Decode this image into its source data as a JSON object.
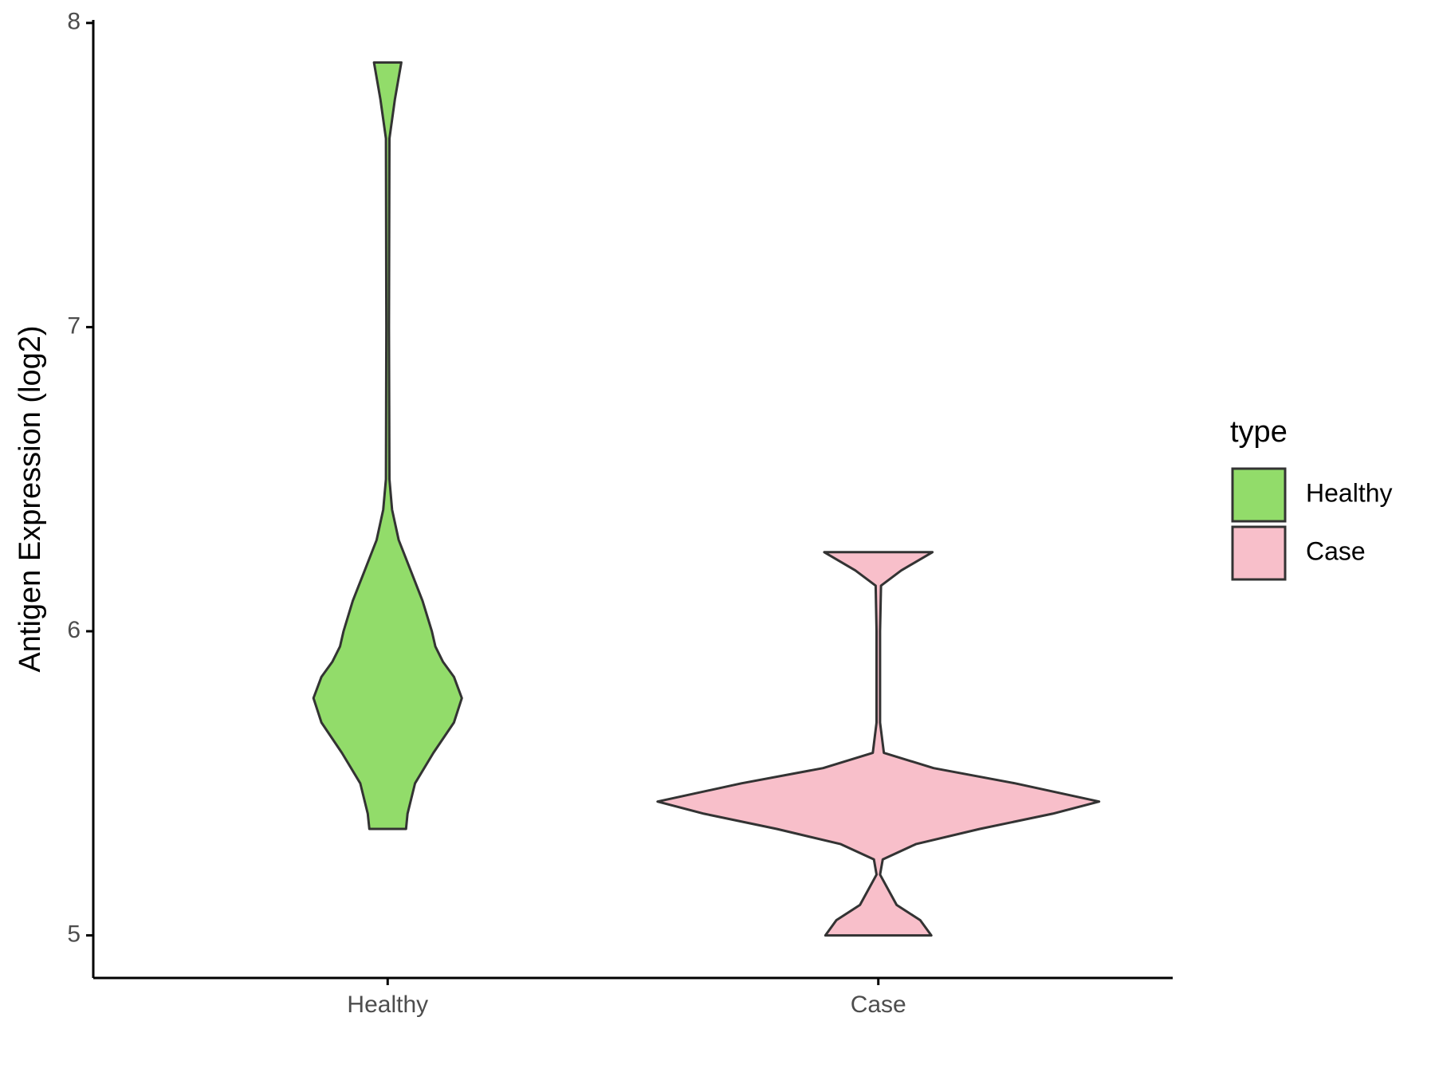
{
  "chart_data": {
    "type": "violin",
    "y_label": "Antigen Expression (log2)",
    "categories": [
      "Healthy",
      "Case"
    ],
    "legend_title": "type",
    "violins": [
      {
        "name": "Healthy",
        "color": "#92dc6a",
        "y": [
          7.87,
          7.75,
          7.62,
          7.0,
          6.5,
          6.4,
          6.3,
          6.2,
          6.1,
          6.0,
          5.95,
          5.9,
          5.85,
          5.78,
          5.7,
          5.6,
          5.5,
          5.4,
          5.35
        ],
        "width": [
          0.062,
          0.033,
          0.008,
          0.006,
          0.008,
          0.02,
          0.05,
          0.104,
          0.158,
          0.2,
          0.216,
          0.25,
          0.3,
          0.336,
          0.3,
          0.207,
          0.124,
          0.09,
          0.083
        ]
      },
      {
        "name": "Case",
        "color": "#f8bfca",
        "y": [
          6.26,
          6.2,
          6.15,
          6.0,
          5.7,
          5.6,
          5.55,
          5.5,
          5.44,
          5.4,
          5.35,
          5.3,
          5.25,
          5.2,
          5.1,
          5.05,
          5.0
        ],
        "width": [
          0.245,
          0.104,
          0.012,
          0.008,
          0.008,
          0.025,
          0.25,
          0.62,
          1.0,
          0.79,
          0.46,
          0.17,
          0.02,
          0.008,
          0.083,
          0.19,
          0.24
        ]
      }
    ],
    "ylim": [
      4.86,
      8.01
    ],
    "yticks": [
      5,
      6,
      7,
      8
    ]
  }
}
